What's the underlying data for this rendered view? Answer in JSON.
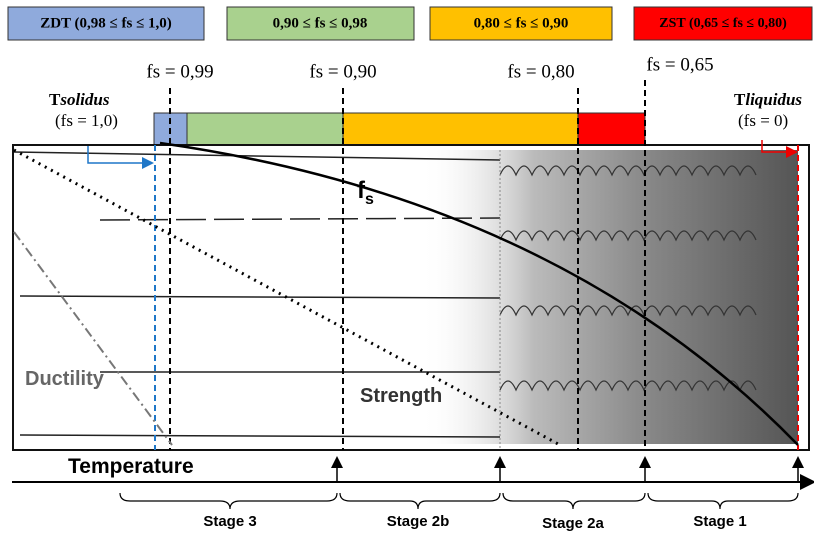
{
  "legend": [
    "ZDT (0,98 ≤ fs ≤ 1,0)",
    "0,90 ≤ fs ≤ 0,98",
    "0,80 ≤ fs ≤ 0,90",
    "ZST (0,65 ≤ fs ≤ 0,80)"
  ],
  "fraction_markers": [
    "fs = 0,99",
    "fs = 0,90",
    "fs = 0,80",
    "fs = 0,65"
  ],
  "solidus": {
    "prefix": "T",
    "name": "solidus",
    "fraction": "(fs = 1,0)"
  },
  "liquidus": {
    "prefix": "T",
    "name": "liquidus",
    "fraction": "(fs = 0)"
  },
  "curve_label": {
    "main": "f",
    "subscript": "s"
  },
  "ductility_label": "Ductility",
  "strength_label": "Strength",
  "axis_label": "Temperature",
  "stages": [
    "Stage 3",
    "Stage 2b",
    "Stage 2a",
    "Stage 1"
  ]
}
